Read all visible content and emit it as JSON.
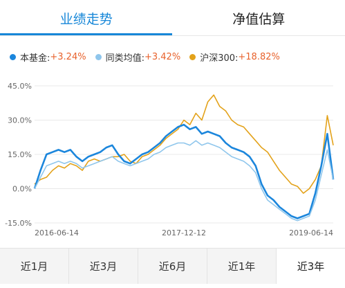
{
  "tabs": [
    {
      "label": "业绩走势",
      "active": true
    },
    {
      "label": "净值估算",
      "active": false
    }
  ],
  "legend": [
    {
      "name": "本基金:",
      "value": "+3.24%",
      "color": "#1b86dc"
    },
    {
      "name": "同类均值:",
      "value": "+3.42%",
      "color": "#8fc6ec"
    },
    {
      "name": "沪深300:",
      "value": "+18.82%",
      "color": "#e3a21a"
    }
  ],
  "range_buttons": [
    {
      "label": "近1月",
      "active": false
    },
    {
      "label": "近3月",
      "active": false
    },
    {
      "label": "近6月",
      "active": false
    },
    {
      "label": "近1年",
      "active": false
    },
    {
      "label": "近3年",
      "active": true
    }
  ],
  "chart_data": {
    "type": "line",
    "ylim": [
      -15,
      45
    ],
    "y_ticks": [
      "45.0%",
      "30.0%",
      "15.0%",
      "0.0%",
      "-15.0%"
    ],
    "y_tick_values": [
      45,
      30,
      15,
      0,
      -15
    ],
    "x_ticks": [
      {
        "label": "2016-06-14",
        "x": 0
      },
      {
        "label": "2017-12-12",
        "x": 0.5
      },
      {
        "label": "2019-06-14",
        "x": 1
      }
    ],
    "grid": true,
    "series": [
      {
        "name": "沪深300",
        "color": "#e3a21a",
        "x": [
          0,
          0.02,
          0.04,
          0.06,
          0.08,
          0.1,
          0.12,
          0.14,
          0.16,
          0.18,
          0.2,
          0.22,
          0.24,
          0.26,
          0.28,
          0.3,
          0.32,
          0.34,
          0.36,
          0.38,
          0.4,
          0.42,
          0.44,
          0.46,
          0.48,
          0.5,
          0.52,
          0.54,
          0.56,
          0.58,
          0.6,
          0.62,
          0.64,
          0.66,
          0.68,
          0.7,
          0.72,
          0.74,
          0.76,
          0.78,
          0.8,
          0.82,
          0.84,
          0.86,
          0.88,
          0.9,
          0.92,
          0.94,
          0.96,
          0.98,
          1.0
        ],
        "y": [
          2,
          4,
          5,
          8,
          10,
          9,
          11,
          10,
          8,
          12,
          13,
          12,
          13,
          14,
          14,
          15,
          12,
          11,
          14,
          15,
          17,
          19,
          22,
          24,
          26,
          30,
          28,
          33,
          30,
          38,
          41,
          36,
          34,
          30,
          28,
          27,
          24,
          21,
          18,
          16,
          12,
          8,
          5,
          2,
          1,
          -2,
          0,
          4,
          10,
          32,
          19
        ]
      },
      {
        "name": "本基金",
        "color": "#1b86dc",
        "x": [
          0,
          0.02,
          0.04,
          0.06,
          0.08,
          0.1,
          0.12,
          0.14,
          0.16,
          0.18,
          0.2,
          0.22,
          0.24,
          0.26,
          0.28,
          0.3,
          0.32,
          0.34,
          0.36,
          0.38,
          0.4,
          0.42,
          0.44,
          0.46,
          0.48,
          0.5,
          0.52,
          0.54,
          0.56,
          0.58,
          0.6,
          0.62,
          0.64,
          0.66,
          0.68,
          0.7,
          0.72,
          0.74,
          0.76,
          0.78,
          0.8,
          0.82,
          0.84,
          0.86,
          0.88,
          0.9,
          0.92,
          0.94,
          0.96,
          0.98,
          1.0
        ],
        "y": [
          0,
          8,
          15,
          16,
          17,
          16,
          17,
          14,
          12,
          14,
          15,
          16,
          18,
          19,
          15,
          12,
          11,
          13,
          15,
          16,
          18,
          20,
          23,
          25,
          27,
          28,
          26,
          27,
          24,
          25,
          24,
          23,
          20,
          18,
          17,
          16,
          14,
          10,
          2,
          -3,
          -5,
          -8,
          -10,
          -12,
          -13,
          -12,
          -11,
          -2,
          10,
          24,
          4
        ]
      },
      {
        "name": "同类均值",
        "color": "#8fc6ec",
        "x": [
          0,
          0.02,
          0.04,
          0.06,
          0.08,
          0.1,
          0.12,
          0.14,
          0.16,
          0.18,
          0.2,
          0.22,
          0.24,
          0.26,
          0.28,
          0.3,
          0.32,
          0.34,
          0.36,
          0.38,
          0.4,
          0.42,
          0.44,
          0.46,
          0.48,
          0.5,
          0.52,
          0.54,
          0.56,
          0.58,
          0.6,
          0.62,
          0.64,
          0.66,
          0.68,
          0.7,
          0.72,
          0.74,
          0.76,
          0.78,
          0.8,
          0.82,
          0.84,
          0.86,
          0.88,
          0.9,
          0.92,
          0.94,
          0.96,
          0.98,
          1.0
        ],
        "y": [
          0,
          5,
          10,
          11,
          12,
          11,
          12,
          11,
          9,
          10,
          11,
          12,
          13,
          14,
          12,
          11,
          10,
          11,
          12,
          13,
          15,
          16,
          18,
          19,
          20,
          20,
          19,
          21,
          19,
          20,
          19,
          18,
          16,
          14,
          13,
          12,
          10,
          7,
          0,
          -5,
          -7,
          -9,
          -11,
          -13,
          -14,
          -13,
          -12,
          -5,
          6,
          17,
          4
        ]
      }
    ]
  }
}
